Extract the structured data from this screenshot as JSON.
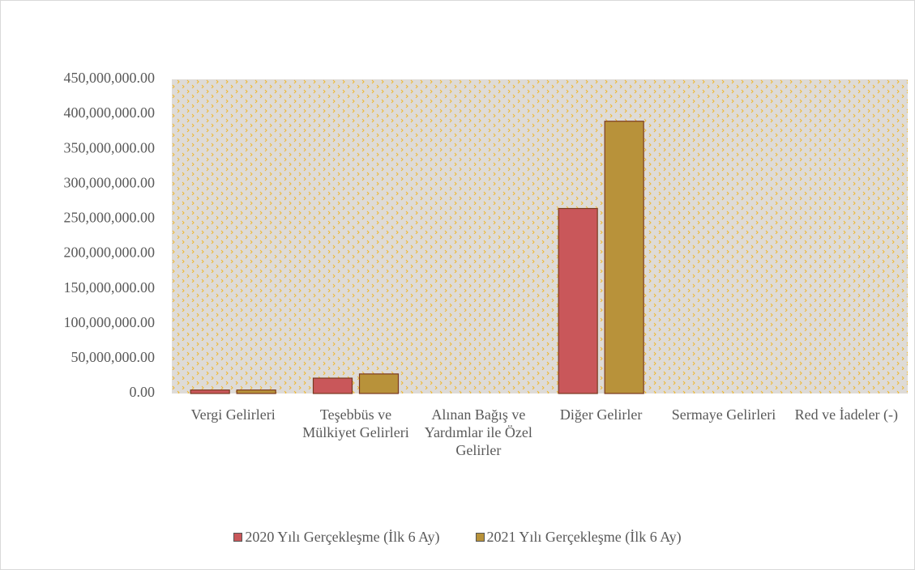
{
  "chart_data": {
    "type": "bar",
    "categories": [
      "Vergi Gelirleri",
      "Teşebbüs ve Mülkiyet Gelirleri",
      "Alınan Bağış ve Yardımlar ile Özel Gelirler",
      "Diğer Gelirler",
      "Sermaye Gelirleri",
      "Red ve İadeler (-)"
    ],
    "series": [
      {
        "name": "2020 Yılı Gerçekleşme (İlk 6 Ay)",
        "color": "#c9575a",
        "values": [
          5000000,
          22000000,
          0,
          265000000,
          0,
          0
        ]
      },
      {
        "name": "2021 Yılı Gerçekleşme (İlk 6 Ay)",
        "color": "#b8923a",
        "values": [
          5000000,
          28000000,
          0,
          390000000,
          0,
          0
        ]
      }
    ],
    "ylim": [
      0,
      450000000
    ],
    "yticks": [
      {
        "value": 0,
        "label": "0.00"
      },
      {
        "value": 50000000,
        "label": "50,000,000.00"
      },
      {
        "value": 100000000,
        "label": "100,000,000.00"
      },
      {
        "value": 150000000,
        "label": "150,000,000.00"
      },
      {
        "value": 200000000,
        "label": "200,000,000.00"
      },
      {
        "value": 250000000,
        "label": "250,000,000.00"
      },
      {
        "value": 300000000,
        "label": "300,000,000.00"
      },
      {
        "value": 350000000,
        "label": "350,000,000.00"
      },
      {
        "value": 400000000,
        "label": "400,000,000.00"
      },
      {
        "value": 450000000,
        "label": "450,000,000.00"
      }
    ],
    "legend": "bottom"
  }
}
